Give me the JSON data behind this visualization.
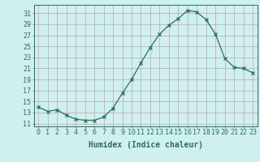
{
  "x": [
    0,
    1,
    2,
    3,
    4,
    5,
    6,
    7,
    8,
    9,
    10,
    11,
    12,
    13,
    14,
    15,
    16,
    17,
    18,
    19,
    20,
    21,
    22,
    23
  ],
  "y": [
    14.0,
    13.2,
    13.5,
    12.5,
    11.8,
    11.6,
    11.6,
    12.2,
    13.8,
    16.5,
    19.0,
    22.0,
    24.8,
    27.2,
    28.8,
    30.0,
    31.5,
    31.2,
    29.8,
    27.2,
    22.8,
    21.2,
    21.0,
    20.2
  ],
  "line_color": "#2d6e5e",
  "marker": "x",
  "marker_color": "#2d6e5e",
  "bg_color": "#cef0f0",
  "grid_color_h": "#c8a0a0",
  "grid_color_v": "#c8a0a0",
  "xlabel": "Humidex (Indice chaleur)",
  "xlim": [
    -0.5,
    23.5
  ],
  "ylim": [
    10.5,
    32.5
  ],
  "yticks": [
    11,
    13,
    15,
    17,
    19,
    21,
    23,
    25,
    27,
    29,
    31
  ],
  "xtick_labels": [
    "0",
    "1",
    "2",
    "3",
    "4",
    "5",
    "6",
    "7",
    "8",
    "9",
    "10",
    "11",
    "12",
    "13",
    "14",
    "15",
    "16",
    "17",
    "18",
    "19",
    "20",
    "21",
    "22",
    "23"
  ],
  "tick_color": "#2d6e5e",
  "label_fontsize": 7,
  "tick_fontsize": 6,
  "linewidth": 0.9,
  "markersize": 2.8
}
